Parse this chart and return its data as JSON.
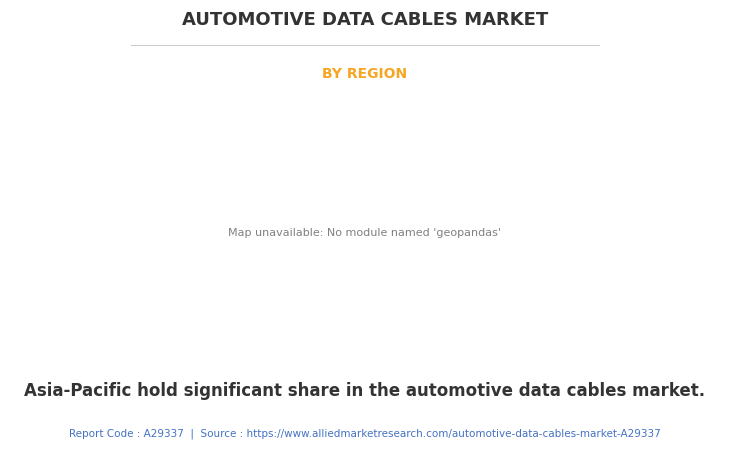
{
  "title": "AUTOMOTIVE DATA CABLES MARKET",
  "subtitle": "BY REGION",
  "subtitle_color": "#F5A623",
  "title_color": "#333333",
  "body_text": "Asia-Pacific hold significant share in the automotive data cables market.",
  "body_text_color": "#333333",
  "footer_text": "Report Code : A29337  |  Source : https://www.alliedmarketresearch.com/automotive-data-cables-market-A29337",
  "footer_color": "#4472C4",
  "background_color": "#ffffff",
  "map_land_color": "#85bb8a",
  "map_na_color": "#e0e0e0",
  "map_border_color": "#7799cc",
  "map_shadow_color": "#b0b0b0",
  "title_fontsize": 13,
  "subtitle_fontsize": 10,
  "body_fontsize": 12,
  "footer_fontsize": 7.5
}
